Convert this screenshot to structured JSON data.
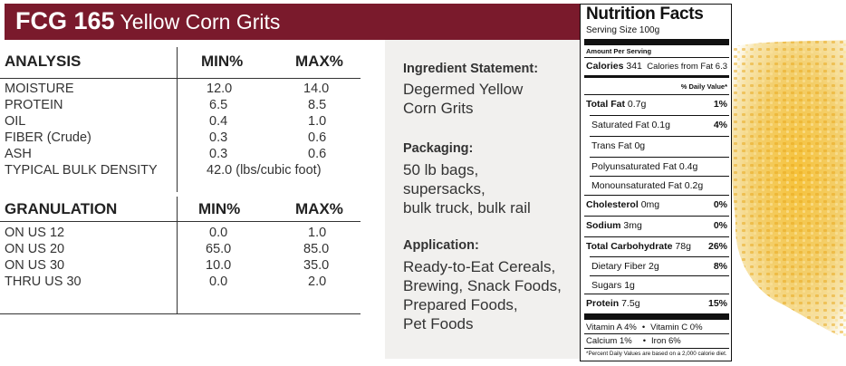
{
  "header": {
    "code": "FCG 165",
    "name": "Yellow Corn Grits",
    "band_color": "#7a1a2c"
  },
  "analysis": {
    "headers": [
      "ANALYSIS",
      "MIN%",
      "MAX%"
    ],
    "rows": [
      [
        "MOISTURE",
        "12.0",
        "14.0"
      ],
      [
        "PROTEIN",
        "6.5",
        "8.5"
      ],
      [
        "OIL",
        "0.4",
        "1.0"
      ],
      [
        "FIBER (Crude)",
        "0.3",
        "0.6"
      ],
      [
        "ASH",
        "0.3",
        "0.6"
      ]
    ],
    "density_label": "TYPICAL BULK DENSITY",
    "density_value": "42.0 (lbs/cubic foot)"
  },
  "granulation": {
    "headers": [
      "GRANULATION",
      "MIN%",
      "MAX%"
    ],
    "rows": [
      [
        "ON US 12",
        "0.0",
        "1.0"
      ],
      [
        "ON US 20",
        "65.0",
        "85.0"
      ],
      [
        "ON US 30",
        "10.0",
        "35.0"
      ],
      [
        "THRU US 30",
        "0.0",
        "2.0"
      ]
    ]
  },
  "panel": {
    "ingredient_heading": "Ingredient Statement:",
    "ingredient_lines": [
      "Degermed Yellow",
      "Corn Grits"
    ],
    "packaging_heading": "Packaging:",
    "packaging_lines": [
      "50 lb bags,",
      "supersacks,",
      "bulk truck, bulk rail"
    ],
    "application_heading": "Application:",
    "application_lines": [
      "Ready-to-Eat Cereals,",
      "Brewing, Snack Foods,",
      "Prepared Foods,",
      "Pet Foods"
    ]
  },
  "nutrition": {
    "title": "Nutrition Facts",
    "serving": "Serving Size 100g",
    "amount_per": "Amount Per Serving",
    "calories_label": "Calories",
    "calories_value": "341",
    "calories_fat": "Calories from Fat 6.3",
    "dv_header": "% Daily Value*",
    "total_fat": {
      "label": "Total Fat",
      "amount": "0.7g",
      "pct": "1%"
    },
    "saturated_fat": {
      "label": "Saturated Fat",
      "amount": "0.1g",
      "pct": "4%"
    },
    "trans_fat": {
      "label": "Trans Fat",
      "amount": "0g"
    },
    "poly_fat": {
      "label": "Polyunsaturated Fat",
      "amount": "0.4g"
    },
    "mono_fat": {
      "label": "Monounsaturated Fat",
      "amount": "0.2g"
    },
    "cholesterol": {
      "label": "Cholesterol",
      "amount": "0mg",
      "pct": "0%"
    },
    "sodium": {
      "label": "Sodium",
      "amount": "3mg",
      "pct": "0%"
    },
    "carbs": {
      "label": "Total Carbohydrate",
      "amount": "78g",
      "pct": "26%"
    },
    "fiber": {
      "label": "Dietary Fiber",
      "amount": "2g",
      "pct": "8%"
    },
    "sugars": {
      "label": "Sugars",
      "amount": "1g"
    },
    "protein": {
      "label": "Protein",
      "amount": "7.5g",
      "pct": "15%"
    },
    "vitamin_a": "Vitamin A 4%",
    "vitamin_c": "Vitamin C 0%",
    "calcium": "Calcium 1%",
    "iron": "Iron 6%",
    "bullet": "•",
    "footnote": "*Percent Daily Values are based on a 2,000 calorie diet."
  }
}
